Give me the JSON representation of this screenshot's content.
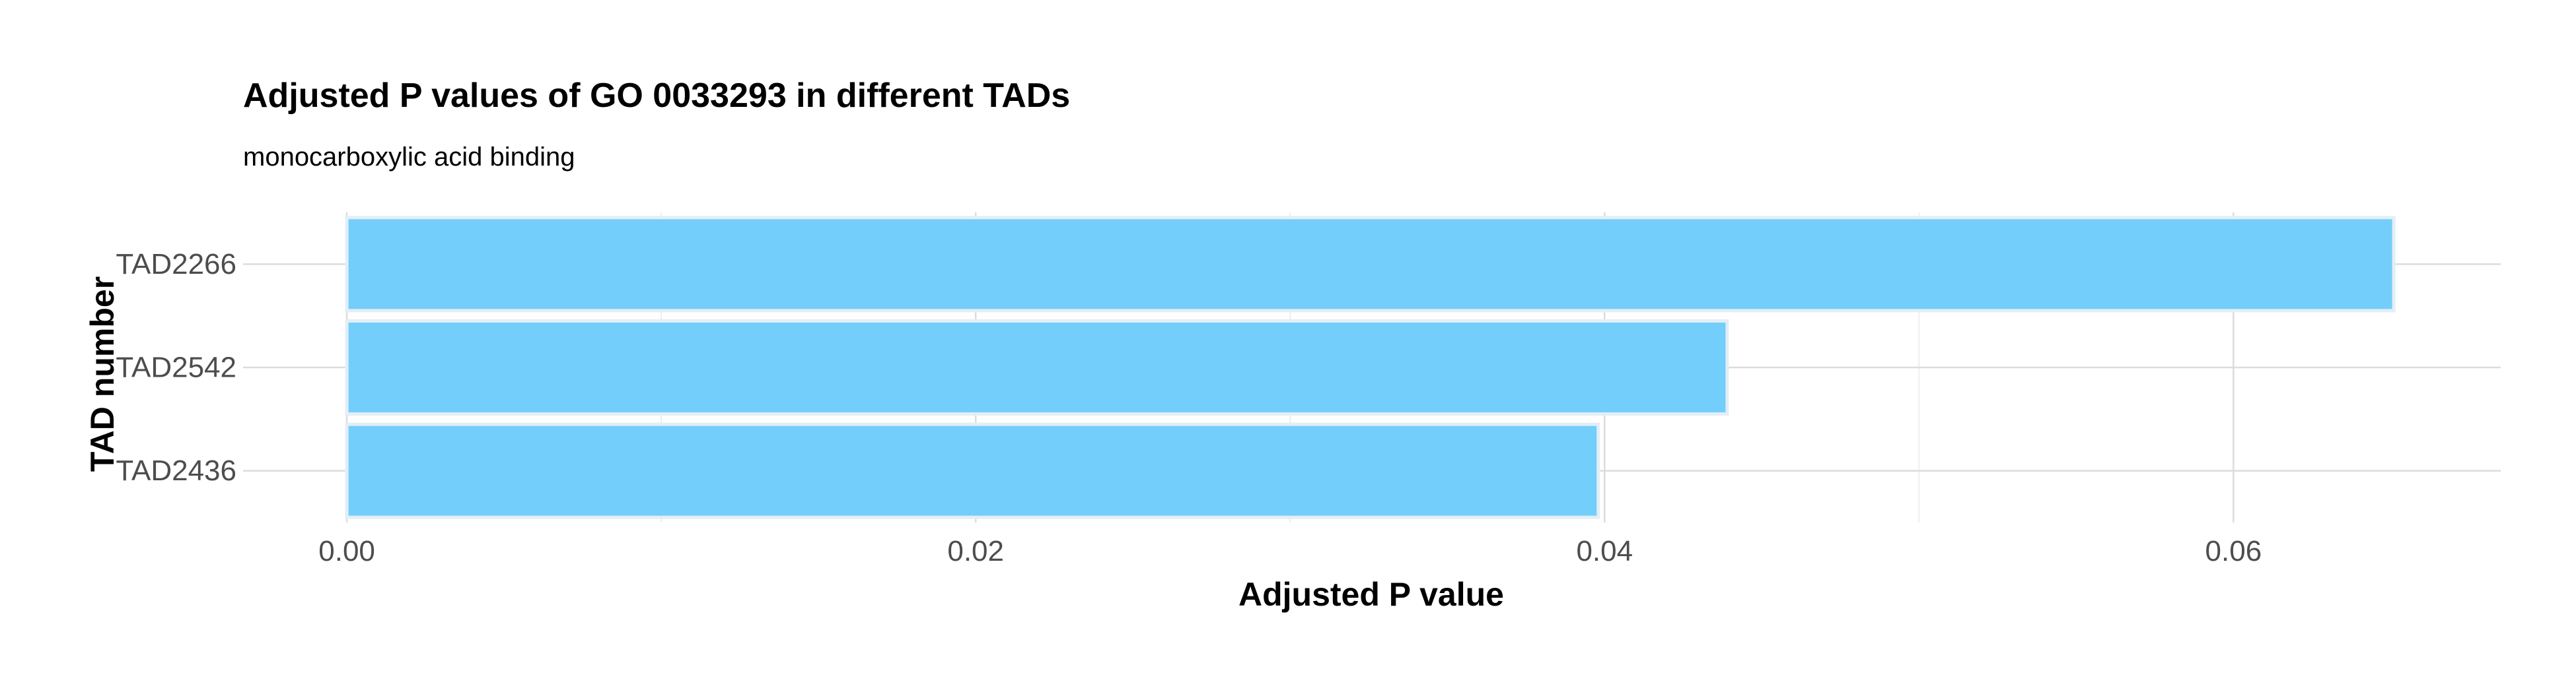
{
  "chart_data": {
    "type": "bar",
    "orientation": "horizontal",
    "title": "Adjusted P values of GO 0033293 in different TADs",
    "subtitle": "monocarboxylic acid binding",
    "xlabel": "Adjusted P value",
    "ylabel": "TAD number",
    "categories": [
      "TAD2266",
      "TAD2542",
      "TAD2436"
    ],
    "values": [
      0.0651,
      0.0439,
      0.0398
    ],
    "xlim": [
      -0.0033,
      0.0685
    ],
    "xticks": [
      0.0,
      0.02,
      0.04,
      0.06
    ],
    "xtick_labels": [
      "0.00",
      "0.02",
      "0.04",
      "0.06"
    ],
    "grid": true,
    "legend": "none",
    "colors": {
      "bar_fill": "#73CEFB",
      "bar_stroke": "#E3EEF5",
      "grid_major": "#DCDCDC",
      "grid_minor": "#EEEEEE"
    }
  }
}
